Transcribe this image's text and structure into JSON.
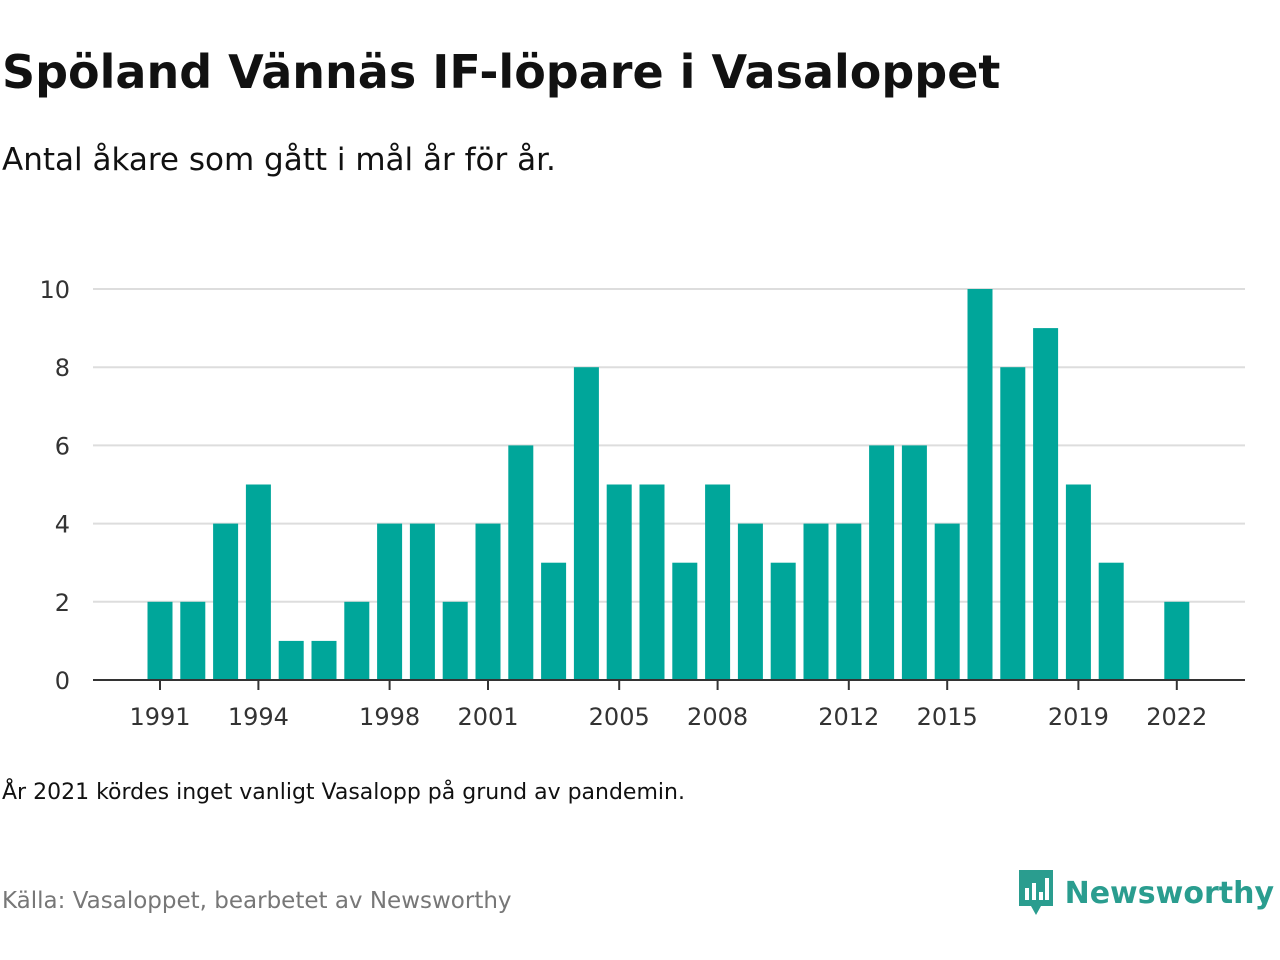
{
  "header": {
    "title": "Spöland Vännäs IF-löpare i Vasaloppet",
    "subtitle": "Antal åkare som gått i mål år för år."
  },
  "footer": {
    "note": "År 2021 kördes inget vanligt Vasalopp på grund av pandemin.",
    "source": "Källa: Vasaloppet, bearbetet av Newsworthy",
    "brand": "Newsworthy",
    "brand_icon": "newsworthy-logo-icon"
  },
  "colors": {
    "bar": "#00a69a",
    "grid": "#dddddd",
    "axis": "#333333",
    "brand": "#2a9d8f"
  },
  "chart_data": {
    "type": "bar",
    "categories": [
      1991,
      1992,
      1993,
      1994,
      1995,
      1996,
      1997,
      1998,
      1999,
      2000,
      2001,
      2002,
      2003,
      2004,
      2005,
      2006,
      2007,
      2008,
      2009,
      2010,
      2011,
      2012,
      2013,
      2014,
      2015,
      2016,
      2017,
      2018,
      2019,
      2020,
      2021,
      2022
    ],
    "values": [
      2,
      2,
      4,
      5,
      1,
      1,
      2,
      4,
      4,
      2,
      4,
      6,
      3,
      8,
      5,
      5,
      3,
      5,
      4,
      3,
      4,
      4,
      6,
      6,
      4,
      10,
      8,
      9,
      5,
      3,
      null,
      2
    ],
    "x_tick_labels": [
      "1991",
      "1994",
      "1998",
      "2001",
      "2005",
      "2008",
      "2012",
      "2015",
      "2019",
      "2022"
    ],
    "y_ticks": [
      0,
      2,
      4,
      6,
      8,
      10
    ],
    "ylim": [
      0,
      10
    ],
    "grid": true,
    "legend": "none"
  }
}
